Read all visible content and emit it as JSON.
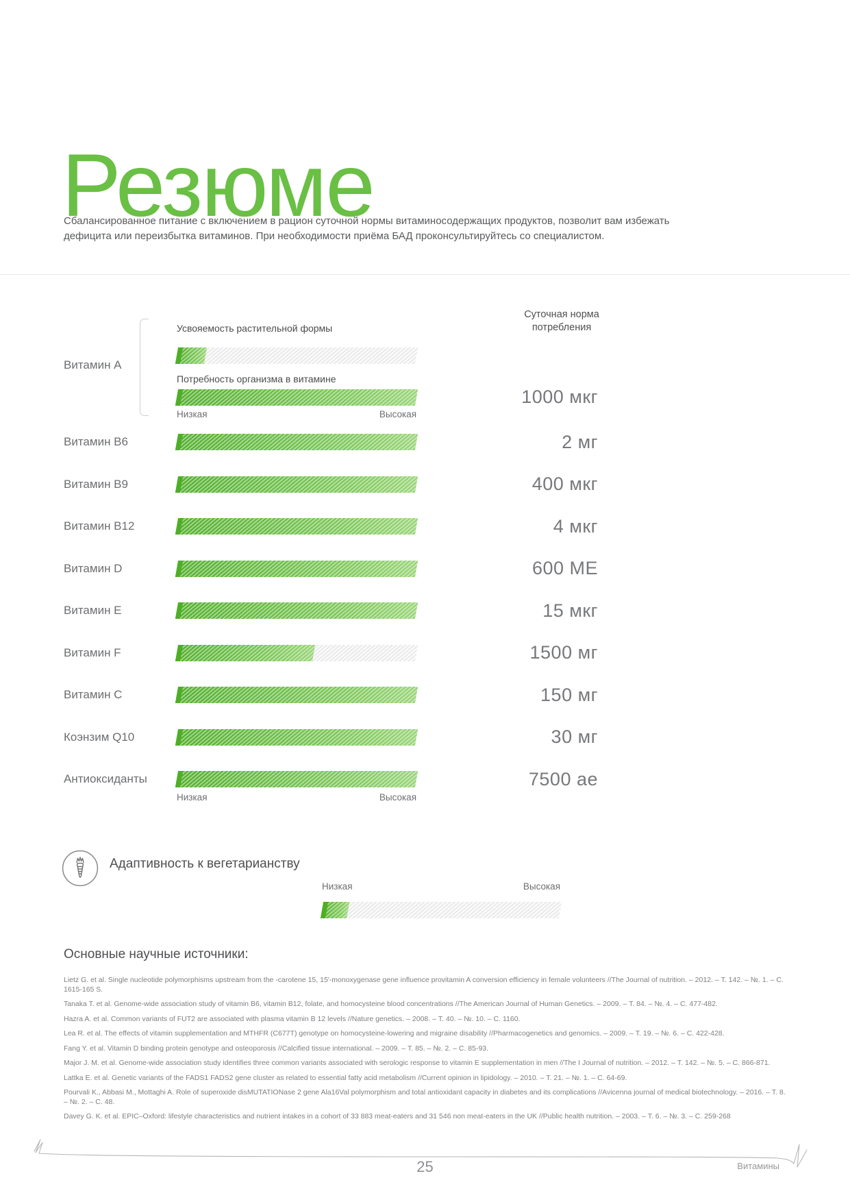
{
  "header": {
    "title": "Резюме",
    "intro": "Сбалансированное питание с включением в рацион суточной нормы витаминосодержащих продуктов, позволит вам избежать дефицита или переизбытка витаминов. При необходимости приёма БАД проконсультируйтесь со специалистом."
  },
  "colors": {
    "accent_green": "#6abf45",
    "bar_green_start": "#4fae27",
    "bar_green_end": "#97d474",
    "bar_gray": "#e8e8e8"
  },
  "chart_data": {
    "type": "bar",
    "norm_header": "Суточная норма потребления",
    "scale": {
      "low": "Низкая",
      "high": "Высокая"
    },
    "xlim_percent": [
      0,
      100
    ],
    "vitamin_a_group": {
      "label": "Витамин A",
      "sub_bars": [
        {
          "label": "Усвояемость растительной формы",
          "percent": 12
        },
        {
          "label": "Потребность организма в витамине",
          "percent": 100
        }
      ],
      "daily_norm": "1000 мкг"
    },
    "rows": [
      {
        "label": "Витамин B6",
        "percent": 100,
        "daily_norm": "2 мг"
      },
      {
        "label": "Витамин B9",
        "percent": 100,
        "daily_norm": "400 мкг"
      },
      {
        "label": "Витамин B12",
        "percent": 100,
        "daily_norm": "4 мкг"
      },
      {
        "label": "Витамин D",
        "percent": 100,
        "daily_norm": "600 МЕ"
      },
      {
        "label": "Витамин E",
        "percent": 100,
        "daily_norm": "15 мкг"
      },
      {
        "label": "Витамин F",
        "percent": 57,
        "daily_norm": "1500 мг"
      },
      {
        "label": "Витамин C",
        "percent": 100,
        "daily_norm": "150 мг"
      },
      {
        "label": "Коэнзим Q10",
        "percent": 100,
        "daily_norm": "30 мг"
      },
      {
        "label": "Антиоксиданты",
        "percent": 100,
        "daily_norm": "7500 ае"
      }
    ]
  },
  "vegetarian": {
    "icon": "carrot-icon",
    "label": "Адаптивность к вегетарианству",
    "scale_low": "Низкая",
    "scale_high": "Высокая",
    "percent": 11
  },
  "sources": {
    "heading": "Основные научные источники:",
    "items": [
      "Lietz G. et al. Single nucleotide polymorphisms upstream from the -carotene 15, 15'-monoxygenase gene influence provitamin A conversion efficiency in female volunteers //The Journal of nutrition. – 2012. – Т. 142. – №. 1. – С. 1615-165 S.",
      "Tanaka T. et al. Genome-wide association study of vitamin B6, vitamin B12, folate, and homocysteine blood concentrations //The American Journal of Human Genetics. – 2009. – Т. 84. – №. 4. – С. 477-482.",
      "Hazra A. et al. Common variants of FUT2 are associated with plasma vitamin B 12 levels //Nature genetics. – 2008. – Т. 40. – №. 10. – С. 1160.",
      "Lea R. et al. The effects of vitamin supplementation and MTHFR (C677T) genotype on homocysteine-lowering and migraine disability //Pharmacogenetics and genomics. – 2009. – Т. 19. – №. 6. – С. 422-428.",
      "Fang Y. et al. Vitamin D binding protein genotype and osteoporosis //Calcified tissue international. – 2009. – Т. 85. – №. 2. – С. 85-93.",
      "Major J. M. et al. Genome-wide association study identifies three common variants associated with serologic response to vitamin E supplementation in men //The I Journal of nutrition. – 2012. – Т. 142. – №. 5. – С. 866-871.",
      "Lattka E. et al. Genetic variants of the FADS1 FADS2 gene cluster as related to essential fatty acid metabolism //Current opinion in lipidology. – 2010. – Т. 21. – №. 1. – С. 64-69.",
      "Pourvali K., Abbasi M., Mottaghi A. Role of superoxide disMUTATIONase 2 gene Ala16Val polymorphism and total antioxidant capacity in diabetes and its complications //Avicenna journal of medical biotechnology. – 2016. – Т. 8. – №. 2. – С. 48.",
      "Davey G. K. et al. EPIC–Oxford: lifestyle characteristics and nutrient intakes in a cohort of 33 883 meat-eaters and 31 546 non meat-eaters in the UK //Public health nutrition. – 2003. – Т. 6. – №. 3. – С. 259-268"
    ]
  },
  "footer": {
    "page_number": "25",
    "section": "Витамины"
  }
}
